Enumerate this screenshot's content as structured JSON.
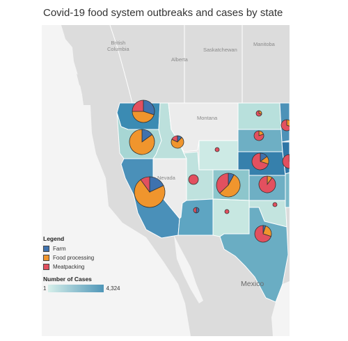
{
  "title": "Covid-19 food system outbreaks and cases by state",
  "places": {
    "bc": "British\nColumbia",
    "alberta": "Alberta",
    "sask": "Saskatchewan",
    "manitoba": "Manitoba",
    "montana": "Montana",
    "nevada": "Nevada",
    "mexico": "Mexico"
  },
  "legend": {
    "title": "Legend",
    "items": [
      {
        "label": "Farm",
        "color": "#3f72ae"
      },
      {
        "label": "Food processing",
        "color": "#f0952d"
      },
      {
        "label": "Meatpacking",
        "color": "#e2505f"
      }
    ],
    "cases_title": "Number of Cases",
    "cases_min": "1",
    "cases_max": "4,324",
    "gradient": [
      "#d6efea",
      "#4f96b8"
    ]
  },
  "colors": {
    "land": "#dcdcdc",
    "water": "#f4f4f4",
    "border": "#ffffff"
  },
  "states": [
    {
      "name": "Washington",
      "fill": "#3b8bb3"
    },
    {
      "name": "Oregon",
      "fill": "#a7d6d4"
    },
    {
      "name": "California",
      "fill": "#4a90b9"
    },
    {
      "name": "Idaho",
      "fill": "#bce0dc"
    },
    {
      "name": "Nevada",
      "fill": "#ececec"
    },
    {
      "name": "Utah",
      "fill": "#bfe2de"
    },
    {
      "name": "Arizona",
      "fill": "#5ea5c2"
    },
    {
      "name": "Montana",
      "fill": "#ececec"
    },
    {
      "name": "Wyoming",
      "fill": "#cdeae5"
    },
    {
      "name": "Colorado",
      "fill": "#8dc6cc"
    },
    {
      "name": "New Mexico",
      "fill": "#c7e7e1"
    },
    {
      "name": "North Dakota",
      "fill": "#b8e0dc"
    },
    {
      "name": "South Dakota",
      "fill": "#6eafc4"
    },
    {
      "name": "Nebraska",
      "fill": "#3680ac"
    },
    {
      "name": "Kansas",
      "fill": "#6eafc4"
    },
    {
      "name": "Oklahoma",
      "fill": "#c3e4df"
    },
    {
      "name": "Texas",
      "fill": "#6aadc3"
    },
    {
      "name": "Minnesota",
      "fill": "#4d92b8"
    },
    {
      "name": "Iowa",
      "fill": "#2f76a6"
    },
    {
      "name": "Missouri",
      "fill": "#7bb9c9"
    }
  ],
  "pies": [
    {
      "state": "Washington",
      "r": 16,
      "slices": [
        {
          "type": "Farm",
          "value": 30
        },
        {
          "type": "Food processing",
          "value": 45
        },
        {
          "type": "Meatpacking",
          "value": 25
        }
      ]
    },
    {
      "state": "Oregon",
      "r": 18,
      "slices": [
        {
          "type": "Farm",
          "value": 15
        },
        {
          "type": "Food processing",
          "value": 85
        }
      ]
    },
    {
      "state": "Idaho",
      "r": 9,
      "slices": [
        {
          "type": "Farm",
          "value": 12
        },
        {
          "type": "Food processing",
          "value": 70
        },
        {
          "type": "Meatpacking",
          "value": 18
        }
      ]
    },
    {
      "state": "California",
      "r": 22,
      "slices": [
        {
          "type": "Farm",
          "value": 18
        },
        {
          "type": "Food processing",
          "value": 72
        },
        {
          "type": "Meatpacking",
          "value": 10
        }
      ]
    },
    {
      "state": "Utah",
      "r": 7,
      "slices": [
        {
          "type": "Meatpacking",
          "value": 100
        }
      ]
    },
    {
      "state": "Colorado",
      "r": 17,
      "slices": [
        {
          "type": "Farm",
          "value": 8
        },
        {
          "type": "Food processing",
          "value": 55
        },
        {
          "type": "Meatpacking",
          "value": 37
        }
      ]
    },
    {
      "state": "Wyoming",
      "r": 3,
      "slices": [
        {
          "type": "Meatpacking",
          "value": 100
        }
      ]
    },
    {
      "state": "Arizona",
      "r": 4,
      "slices": [
        {
          "type": "Farm",
          "value": 50
        },
        {
          "type": "Meatpacking",
          "value": 50
        }
      ]
    },
    {
      "state": "New Mexico",
      "r": 3,
      "slices": [
        {
          "type": "Meatpacking",
          "value": 100
        }
      ]
    },
    {
      "state": "North Dakota",
      "r": 4,
      "slices": [
        {
          "type": "Food processing",
          "value": 30
        },
        {
          "type": "Meatpacking",
          "value": 70
        }
      ]
    },
    {
      "state": "South Dakota",
      "r": 7,
      "slices": [
        {
          "type": "Food processing",
          "value": 20
        },
        {
          "type": "Meatpacking",
          "value": 80
        }
      ]
    },
    {
      "state": "Nebraska",
      "r": 12,
      "slices": [
        {
          "type": "Farm",
          "value": 15
        },
        {
          "type": "Food processing",
          "value": 15
        },
        {
          "type": "Meatpacking",
          "value": 70
        }
      ]
    },
    {
      "state": "Kansas",
      "r": 12,
      "slices": [
        {
          "type": "Food processing",
          "value": 10
        },
        {
          "type": "Meatpacking",
          "value": 90
        }
      ]
    },
    {
      "state": "Oklahoma",
      "r": 3,
      "slices": [
        {
          "type": "Meatpacking",
          "value": 100
        }
      ]
    },
    {
      "state": "Texas",
      "r": 12,
      "slices": [
        {
          "type": "Farm",
          "value": 5
        },
        {
          "type": "Food processing",
          "value": 25
        },
        {
          "type": "Meatpacking",
          "value": 70
        }
      ]
    },
    {
      "state": "Minnesota",
      "r": 8,
      "slices": [
        {
          "type": "Food processing",
          "value": 30
        },
        {
          "type": "Meatpacking",
          "value": 70
        }
      ]
    },
    {
      "state": "Iowa",
      "r": 10,
      "slices": [
        {
          "type": "Food processing",
          "value": 20
        },
        {
          "type": "Meatpacking",
          "value": 80
        }
      ]
    }
  ]
}
